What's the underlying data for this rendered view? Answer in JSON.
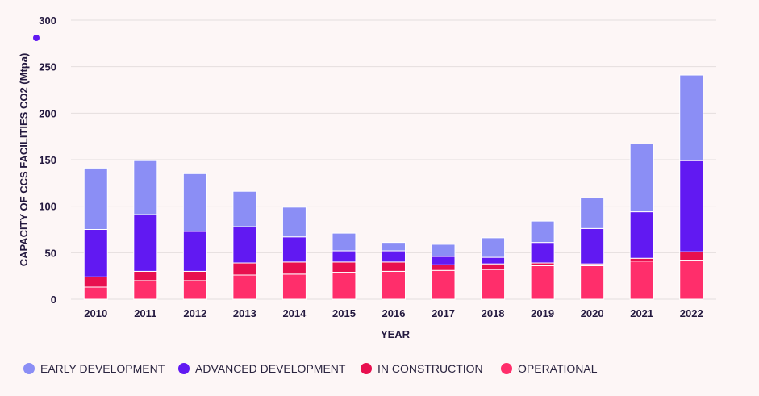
{
  "chart_data": {
    "type": "bar",
    "stacked": true,
    "categories": [
      "2010",
      "2011",
      "2012",
      "2013",
      "2014",
      "2015",
      "2016",
      "2017",
      "2018",
      "2019",
      "2020",
      "2021",
      "2022"
    ],
    "series": [
      {
        "name": "OPERATIONAL",
        "color": "#ff2e6b",
        "values": [
          13,
          20,
          20,
          26,
          27,
          29,
          30,
          31,
          32,
          36,
          36,
          41,
          42
        ]
      },
      {
        "name": "IN CONSTRUCTION",
        "color": "#e8104f",
        "values": [
          11,
          10,
          10,
          13,
          13,
          11,
          10,
          6,
          6,
          3,
          2,
          3,
          9
        ]
      },
      {
        "name": "ADVANCED DEVELOPMENT",
        "color": "#6119f2",
        "values": [
          51,
          61,
          43,
          39,
          27,
          12,
          12,
          9,
          7,
          22,
          38,
          50,
          98
        ]
      },
      {
        "name": "EARLY DEVELOPMENT",
        "color": "#8b8ef5",
        "values": [
          66,
          58,
          62,
          38,
          32,
          19,
          9,
          13,
          21,
          23,
          33,
          73,
          92
        ]
      }
    ],
    "xlabel": "YEAR",
    "ylabel": "CAPACITY OF CCS FACILITIES CO2 (Mtpa)",
    "ylim": [
      0,
      300
    ],
    "yticks": [
      0,
      50,
      100,
      150,
      200,
      250,
      300
    ],
    "grid": true,
    "legend_position": "bottom-left",
    "legend_order": [
      "EARLY DEVELOPMENT",
      "ADVANCED DEVELOPMENT",
      "IN CONSTRUCTION",
      "OPERATIONAL"
    ],
    "marker_color": "#6119f2"
  }
}
